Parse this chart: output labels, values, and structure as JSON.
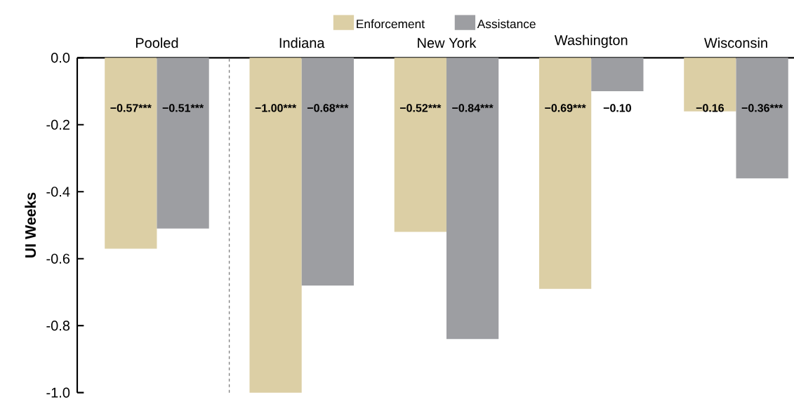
{
  "chart_data": {
    "type": "bar",
    "ylabel": "UI Weeks",
    "categories": [
      "Pooled",
      "Indiana",
      "New York",
      "Washington",
      "Wisconsin"
    ],
    "series": [
      {
        "name": "Enforcement",
        "color": "#dccfa5",
        "values": [
          -0.57,
          -1.0,
          -0.52,
          -0.69,
          -0.16
        ],
        "value_labels": [
          "−0.57***",
          "−1.00***",
          "−0.52***",
          "−0.69***",
          "−0.16"
        ]
      },
      {
        "name": "Assistance",
        "color": "#9d9ea2",
        "values": [
          -0.51,
          -0.68,
          -0.84,
          -0.1,
          -0.36
        ],
        "value_labels": [
          "−0.51***",
          "−0.68***",
          "−0.84***",
          "−0.10",
          "−0.36***"
        ]
      }
    ],
    "ylim": [
      -1.0,
      0.0
    ],
    "yticks": [
      {
        "value": -1.0,
        "label": "-1.0"
      },
      {
        "value": -0.8,
        "label": "-0.8"
      },
      {
        "value": -0.6,
        "label": "-0.6"
      },
      {
        "value": -0.4,
        "label": "-0.4"
      },
      {
        "value": -0.2,
        "label": "-0.2"
      },
      {
        "value": 0.0,
        "label": "0.0"
      }
    ],
    "legend": "top",
    "grid": false
  }
}
